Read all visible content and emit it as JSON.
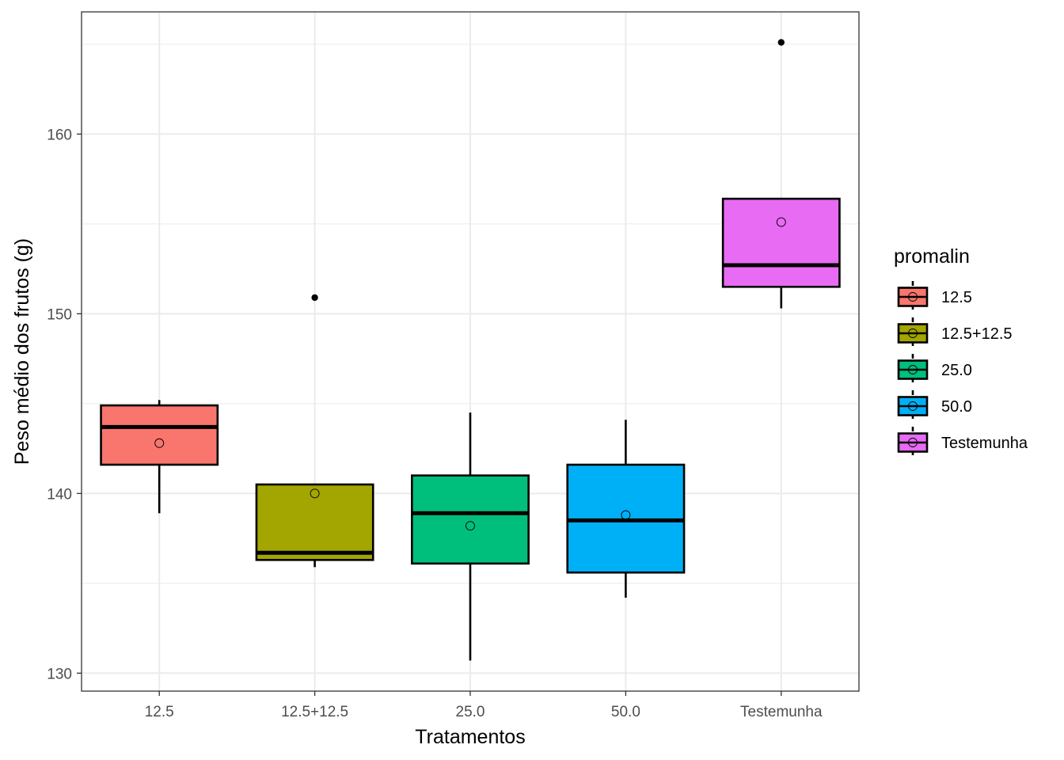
{
  "chart_data": {
    "type": "boxplot",
    "title": "",
    "xlabel": "Tratamentos",
    "ylabel": "Peso médio dos frutos (g)",
    "ylim": [
      129.0,
      166.8
    ],
    "y_ticks": [
      130,
      140,
      150,
      160
    ],
    "grid": true,
    "categories": [
      "12.5",
      "12.5+12.5",
      "25.0",
      "50.0",
      "Testemunha"
    ],
    "colors": [
      "#F8766D",
      "#A3A500",
      "#00BF7D",
      "#00B0F6",
      "#E76BF3"
    ],
    "boxes": [
      {
        "category": "12.5",
        "whisker_low": 138.9,
        "q1": 141.6,
        "median": 143.7,
        "q3": 144.9,
        "whisker_high": 145.2,
        "mean": 142.8,
        "outliers": []
      },
      {
        "category": "12.5+12.5",
        "whisker_low": 135.9,
        "q1": 136.3,
        "median": 136.7,
        "q3": 140.5,
        "whisker_high": 140.5,
        "mean": 140.0,
        "outliers": [
          150.9
        ]
      },
      {
        "category": "25.0",
        "whisker_low": 130.7,
        "q1": 136.1,
        "median": 138.9,
        "q3": 141.0,
        "whisker_high": 144.5,
        "mean": 138.2,
        "outliers": []
      },
      {
        "category": "50.0",
        "whisker_low": 134.2,
        "q1": 135.6,
        "median": 138.5,
        "q3": 141.6,
        "whisker_high": 144.1,
        "mean": 138.8,
        "outliers": []
      },
      {
        "category": "Testemunha",
        "whisker_low": 150.3,
        "q1": 151.5,
        "median": 152.7,
        "q3": 156.4,
        "whisker_high": 156.4,
        "mean": 155.1,
        "outliers": [
          165.1
        ]
      }
    ],
    "legend": {
      "title": "promalin",
      "placement": "right",
      "entries": [
        "12.5",
        "12.5+12.5",
        "25.0",
        "50.0",
        "Testemunha"
      ]
    }
  }
}
